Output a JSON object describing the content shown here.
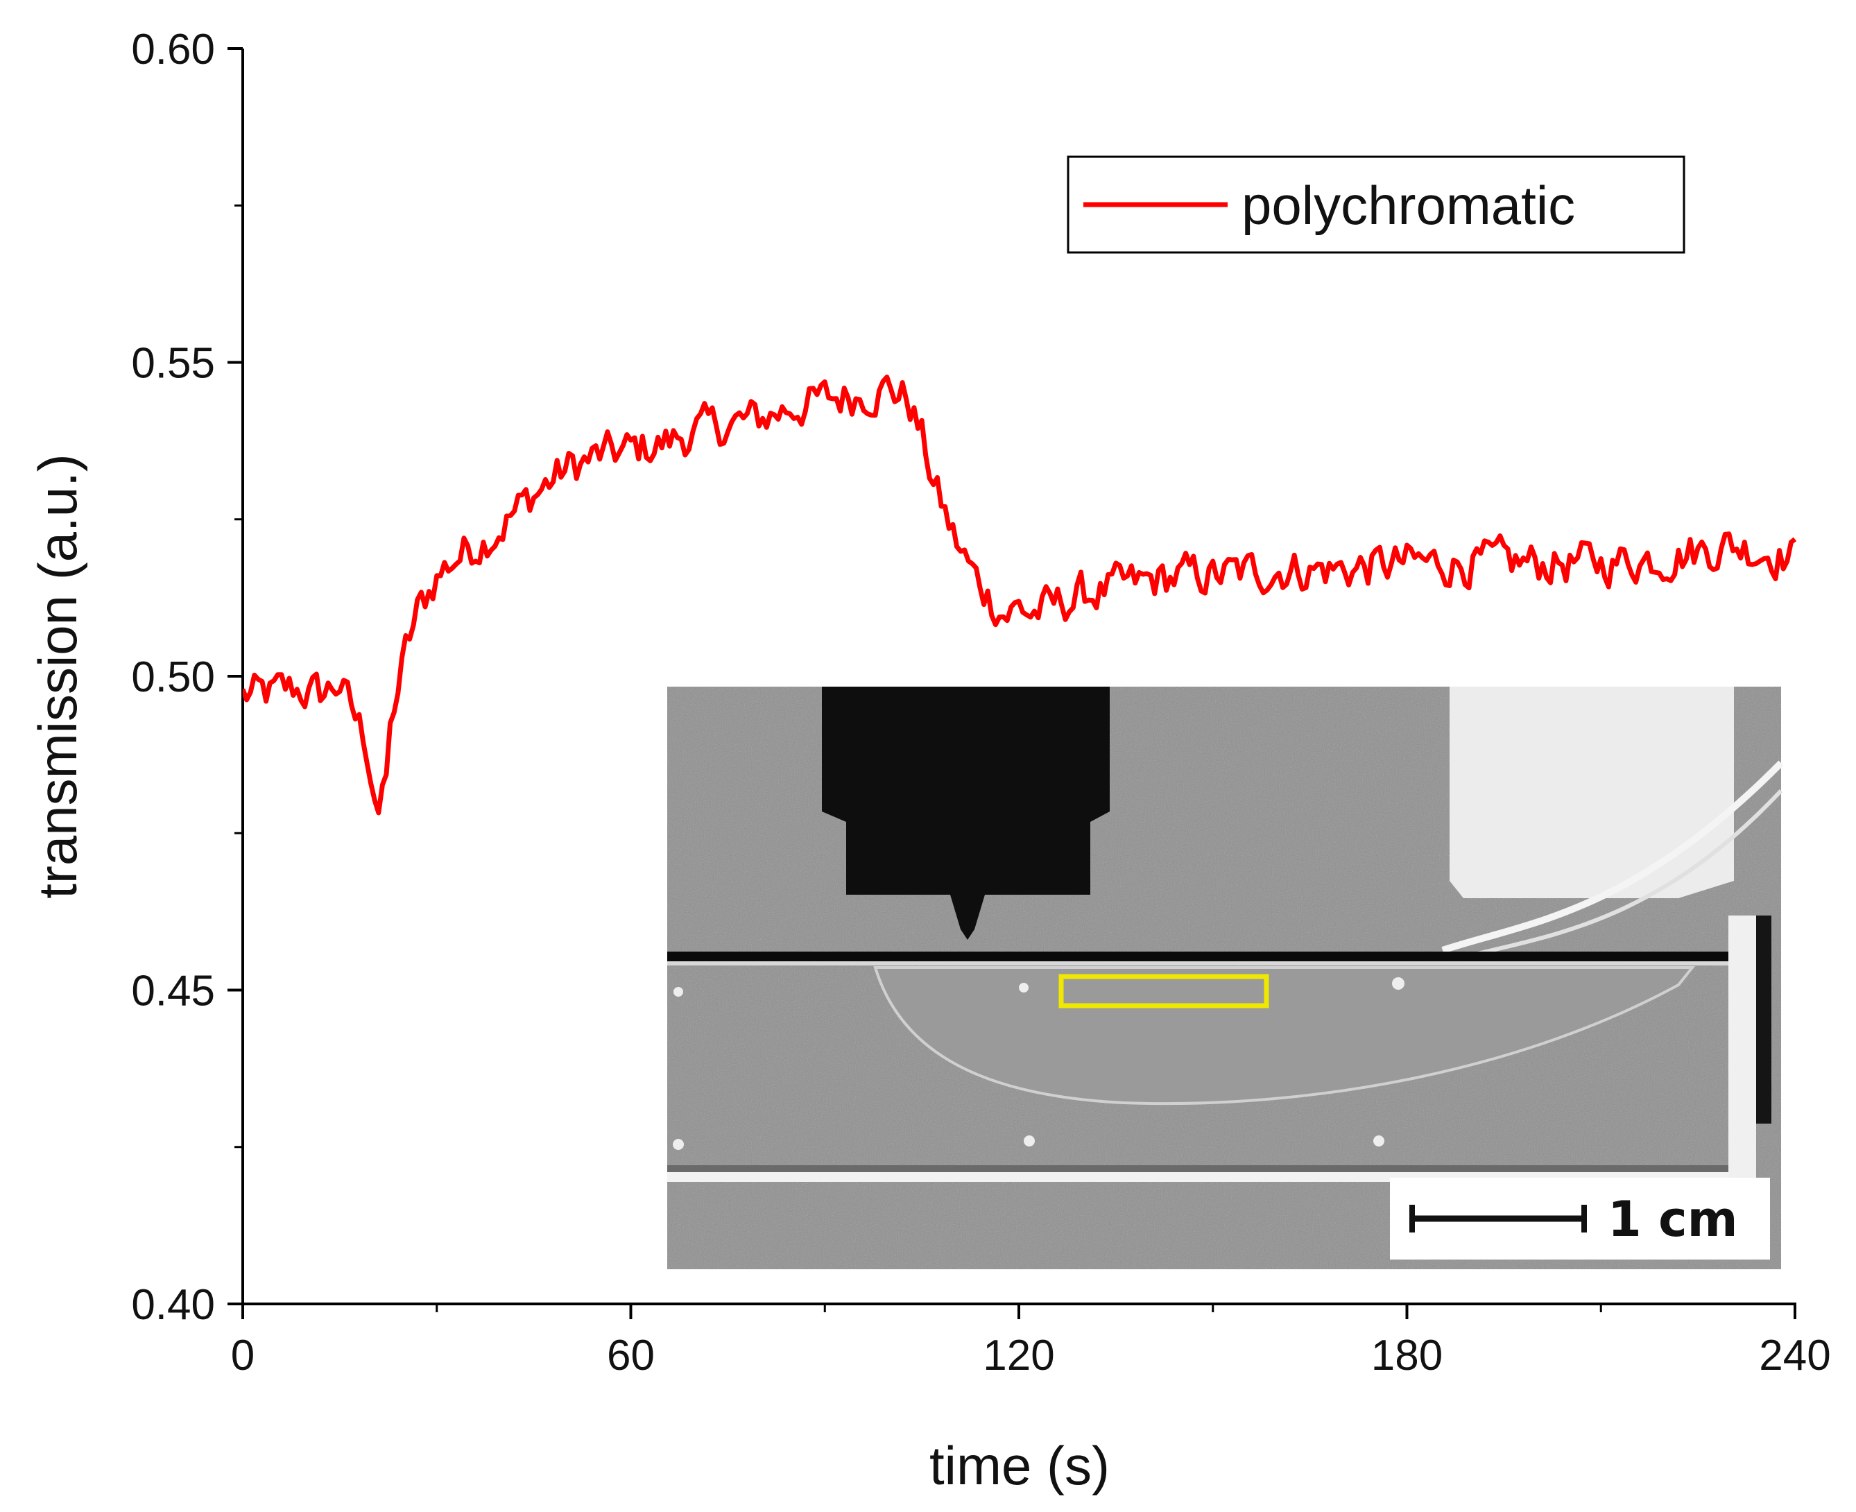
{
  "chart_data": {
    "type": "line",
    "title": "",
    "xlabel": "time (s)",
    "ylabel": "transmission (a.u.)",
    "xlim": [
      0,
      240
    ],
    "ylim": [
      0.4,
      0.6
    ],
    "x_ticks": [
      0,
      60,
      120,
      180,
      240
    ],
    "x_tick_labels": [
      "0",
      "60",
      "120",
      "180",
      "240"
    ],
    "y_ticks": [
      0.4,
      0.45,
      0.5,
      0.55,
      0.6
    ],
    "y_tick_labels": [
      "0.40",
      "0.45",
      "0.50",
      "0.55",
      "0.60"
    ],
    "grid": false,
    "legend_position": "top-right",
    "series": [
      {
        "name": "polychromatic",
        "color": "#ff0000",
        "x": [
          0,
          4,
          8,
          12,
          15,
          17,
          19,
          20,
          21,
          22,
          23,
          25,
          27,
          30,
          33,
          36,
          40,
          45,
          50,
          55,
          60,
          65,
          70,
          75,
          80,
          85,
          90,
          95,
          100,
          103,
          105,
          107,
          110,
          113,
          116,
          118,
          120,
          122,
          125,
          130,
          135,
          140,
          145,
          150,
          160,
          170,
          180,
          190,
          200,
          210,
          220,
          225,
          230,
          235,
          240
        ],
        "values": [
          0.497,
          0.497,
          0.498,
          0.497,
          0.499,
          0.494,
          0.49,
          0.484,
          0.479,
          0.481,
          0.493,
          0.503,
          0.51,
          0.516,
          0.519,
          0.521,
          0.524,
          0.529,
          0.533,
          0.535,
          0.536,
          0.537,
          0.539,
          0.54,
          0.541,
          0.543,
          0.544,
          0.545,
          0.546,
          0.544,
          0.538,
          0.53,
          0.522,
          0.516,
          0.512,
          0.51,
          0.511,
          0.51,
          0.511,
          0.513,
          0.514,
          0.515,
          0.516,
          0.516,
          0.517,
          0.517,
          0.518,
          0.518,
          0.518,
          0.518,
          0.519,
          0.52,
          0.521,
          0.52,
          0.519
        ]
      }
    ]
  },
  "inset": {
    "description_label": "X-ray image inset",
    "scale_bar_label": "1 cm",
    "roi_color": "#f0e800"
  }
}
